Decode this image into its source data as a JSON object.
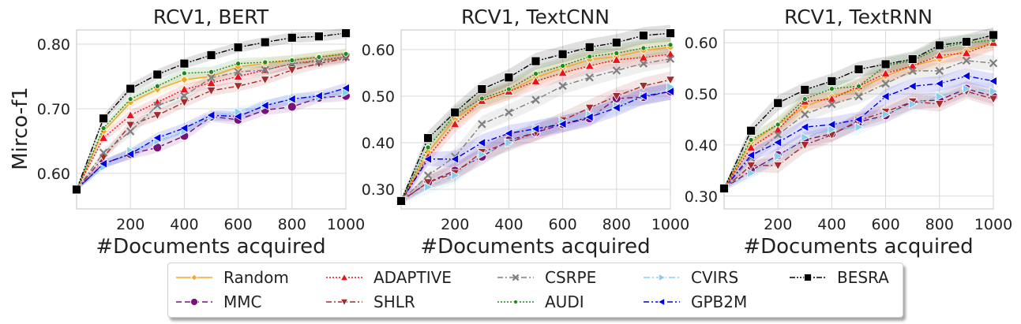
{
  "figure": {
    "ylabel": "Mirco-f1",
    "xlabel": "#Documents acquired"
  },
  "legend_items": [
    "Random",
    "MMC",
    "ADAPTIVE",
    "SHLR",
    "CSRPE",
    "AUDI",
    "CVIRS",
    "GPB2M",
    "BESRA"
  ],
  "series_styles": {
    "Random": {
      "color": "#f5a623",
      "marker": "diamond",
      "dash": ""
    },
    "MMC": {
      "color": "#7a127a",
      "marker": "circle",
      "dash": "7,4"
    },
    "ADAPTIVE": {
      "color": "#e8141c",
      "marker": "triangle-up",
      "dash": "2,2"
    },
    "SHLR": {
      "color": "#a52a2a",
      "marker": "triangle-down",
      "dash": "7,3,2,3"
    },
    "CSRPE": {
      "color": "#7f7f7f",
      "marker": "x",
      "dash": "7,3,2,3"
    },
    "AUDI": {
      "color": "#1a8a1a",
      "marker": "dot",
      "dash": "2,2"
    },
    "CVIRS": {
      "color": "#87ceeb",
      "marker": "triangle-right",
      "dash": "8,3,2,3"
    },
    "GPB2M": {
      "color": "#0000e6",
      "marker": "triangle-left",
      "dash": "7,3,2,3"
    },
    "BESRA": {
      "color": "#000000",
      "marker": "square",
      "dash": "7,2,2,2,2,2"
    }
  },
  "chart_data": [
    {
      "type": "line",
      "title": "RCV1, BERT",
      "x": [
        0,
        100,
        200,
        300,
        400,
        500,
        600,
        700,
        800,
        900,
        1000
      ],
      "xticks": [
        200,
        400,
        600,
        800,
        1000
      ],
      "xlim": [
        0,
        1000
      ],
      "yticks": [
        0.6,
        0.7,
        0.8
      ],
      "ytick_labels": [
        "0.60",
        "0.70",
        "0.80"
      ],
      "ylim": [
        0.545,
        0.822
      ],
      "series": [
        {
          "name": "Random",
          "values": [
            0.575,
            0.665,
            0.71,
            0.73,
            0.745,
            0.75,
            0.765,
            0.77,
            0.775,
            0.78,
            0.785
          ]
        },
        {
          "name": "MMC",
          "values": [
            0.575,
            0.615,
            0.63,
            0.64,
            0.658,
            0.688,
            0.683,
            0.698,
            0.703,
            0.717,
            0.72
          ]
        },
        {
          "name": "ADAPTIVE",
          "values": [
            0.575,
            0.655,
            0.69,
            0.71,
            0.73,
            0.74,
            0.75,
            0.76,
            0.77,
            0.775,
            0.78
          ]
        },
        {
          "name": "SHLR",
          "values": [
            0.575,
            0.625,
            0.675,
            0.69,
            0.71,
            0.728,
            0.735,
            0.745,
            0.76,
            0.77,
            0.778
          ]
        },
        {
          "name": "CSRPE",
          "values": [
            0.575,
            0.632,
            0.665,
            0.705,
            0.72,
            0.748,
            0.757,
            0.76,
            0.77,
            0.773,
            0.78
          ]
        },
        {
          "name": "AUDI",
          "values": [
            0.575,
            0.67,
            0.715,
            0.735,
            0.755,
            0.757,
            0.77,
            0.772,
            0.775,
            0.78,
            0.785
          ]
        },
        {
          "name": "CVIRS",
          "values": [
            0.575,
            0.61,
            0.635,
            0.65,
            0.665,
            0.688,
            0.695,
            0.705,
            0.715,
            0.718,
            0.725
          ]
        },
        {
          "name": "GPB2M",
          "values": [
            0.575,
            0.615,
            0.63,
            0.655,
            0.67,
            0.69,
            0.688,
            0.705,
            0.715,
            0.72,
            0.732
          ]
        },
        {
          "name": "BESRA",
          "values": [
            0.575,
            0.685,
            0.731,
            0.753,
            0.77,
            0.783,
            0.795,
            0.803,
            0.81,
            0.812,
            0.817
          ]
        }
      ]
    },
    {
      "type": "line",
      "title": "RCV1, TextCNN",
      "x": [
        0,
        100,
        200,
        300,
        400,
        500,
        600,
        700,
        800,
        900,
        1000
      ],
      "xticks": [
        200,
        400,
        600,
        800,
        1000
      ],
      "xlim": [
        0,
        1000
      ],
      "yticks": [
        0.3,
        0.4,
        0.5,
        0.6
      ],
      "ytick_labels": [
        "0.30",
        "0.40",
        "0.50",
        "0.60"
      ],
      "ylim": [
        0.258,
        0.642
      ],
      "series": [
        {
          "name": "Random",
          "values": [
            0.275,
            0.38,
            0.45,
            0.49,
            0.51,
            0.54,
            0.56,
            0.578,
            0.585,
            0.598,
            0.605
          ]
        },
        {
          "name": "MMC",
          "values": [
            0.275,
            0.315,
            0.34,
            0.37,
            0.405,
            0.422,
            0.44,
            0.452,
            0.495,
            0.498,
            0.51
          ]
        },
        {
          "name": "ADAPTIVE",
          "values": [
            0.275,
            0.37,
            0.44,
            0.49,
            0.51,
            0.532,
            0.55,
            0.565,
            0.578,
            0.583,
            0.59
          ]
        },
        {
          "name": "SHLR",
          "values": [
            0.275,
            0.315,
            0.335,
            0.38,
            0.4,
            0.422,
            0.448,
            0.475,
            0.5,
            0.522,
            0.535
          ]
        },
        {
          "name": "CSRPE",
          "values": [
            0.275,
            0.33,
            0.37,
            0.44,
            0.465,
            0.492,
            0.522,
            0.54,
            0.555,
            0.57,
            0.58
          ]
        },
        {
          "name": "AUDI",
          "values": [
            0.275,
            0.39,
            0.46,
            0.495,
            0.515,
            0.548,
            0.565,
            0.585,
            0.592,
            0.603,
            0.61
          ]
        },
        {
          "name": "CVIRS",
          "values": [
            0.275,
            0.305,
            0.33,
            0.375,
            0.4,
            0.43,
            0.445,
            0.46,
            0.48,
            0.5,
            0.52
          ]
        },
        {
          "name": "GPB2M",
          "values": [
            0.275,
            0.365,
            0.365,
            0.4,
            0.42,
            0.43,
            0.44,
            0.455,
            0.475,
            0.5,
            0.51
          ]
        },
        {
          "name": "BESRA",
          "values": [
            0.275,
            0.41,
            0.465,
            0.515,
            0.54,
            0.575,
            0.59,
            0.605,
            0.615,
            0.63,
            0.635
          ]
        }
      ]
    },
    {
      "type": "line",
      "title": "RCV1, TextRNN",
      "x": [
        0,
        100,
        200,
        300,
        400,
        500,
        600,
        700,
        800,
        900,
        1000
      ],
      "xticks": [
        200,
        400,
        600,
        800,
        1000
      ],
      "xlim": [
        0,
        1000
      ],
      "yticks": [
        0.3,
        0.4,
        0.5,
        0.6
      ],
      "ytick_labels": [
        "0.30",
        "0.40",
        "0.50",
        "0.60"
      ],
      "ylim": [
        0.275,
        0.625
      ],
      "series": [
        {
          "name": "Random",
          "values": [
            0.315,
            0.405,
            0.44,
            0.475,
            0.495,
            0.51,
            0.535,
            0.555,
            0.568,
            0.585,
            0.6
          ]
        },
        {
          "name": "MMC",
          "values": [
            0.315,
            0.35,
            0.38,
            0.41,
            0.422,
            0.445,
            0.458,
            0.485,
            0.488,
            0.51,
            0.495
          ]
        },
        {
          "name": "ADAPTIVE",
          "values": [
            0.315,
            0.395,
            0.43,
            0.485,
            0.49,
            0.515,
            0.54,
            0.555,
            0.575,
            0.58,
            0.6
          ]
        },
        {
          "name": "SHLR",
          "values": [
            0.315,
            0.36,
            0.36,
            0.4,
            0.42,
            0.448,
            0.465,
            0.485,
            0.48,
            0.505,
            0.49
          ]
        },
        {
          "name": "CSRPE",
          "values": [
            0.315,
            0.375,
            0.42,
            0.46,
            0.48,
            0.495,
            0.52,
            0.545,
            0.545,
            0.565,
            0.56
          ]
        },
        {
          "name": "AUDI",
          "values": [
            0.315,
            0.41,
            0.44,
            0.49,
            0.51,
            0.515,
            0.555,
            0.565,
            0.59,
            0.6,
            0.605
          ]
        },
        {
          "name": "CVIRS",
          "values": [
            0.315,
            0.345,
            0.378,
            0.415,
            0.43,
            0.435,
            0.46,
            0.48,
            0.495,
            0.51,
            0.505
          ]
        },
        {
          "name": "GPB2M",
          "values": [
            0.315,
            0.38,
            0.405,
            0.435,
            0.44,
            0.45,
            0.495,
            0.515,
            0.52,
            0.535,
            0.525
          ]
        },
        {
          "name": "BESRA",
          "values": [
            0.315,
            0.428,
            0.482,
            0.508,
            0.525,
            0.548,
            0.558,
            0.568,
            0.595,
            0.602,
            0.615
          ]
        }
      ]
    }
  ]
}
